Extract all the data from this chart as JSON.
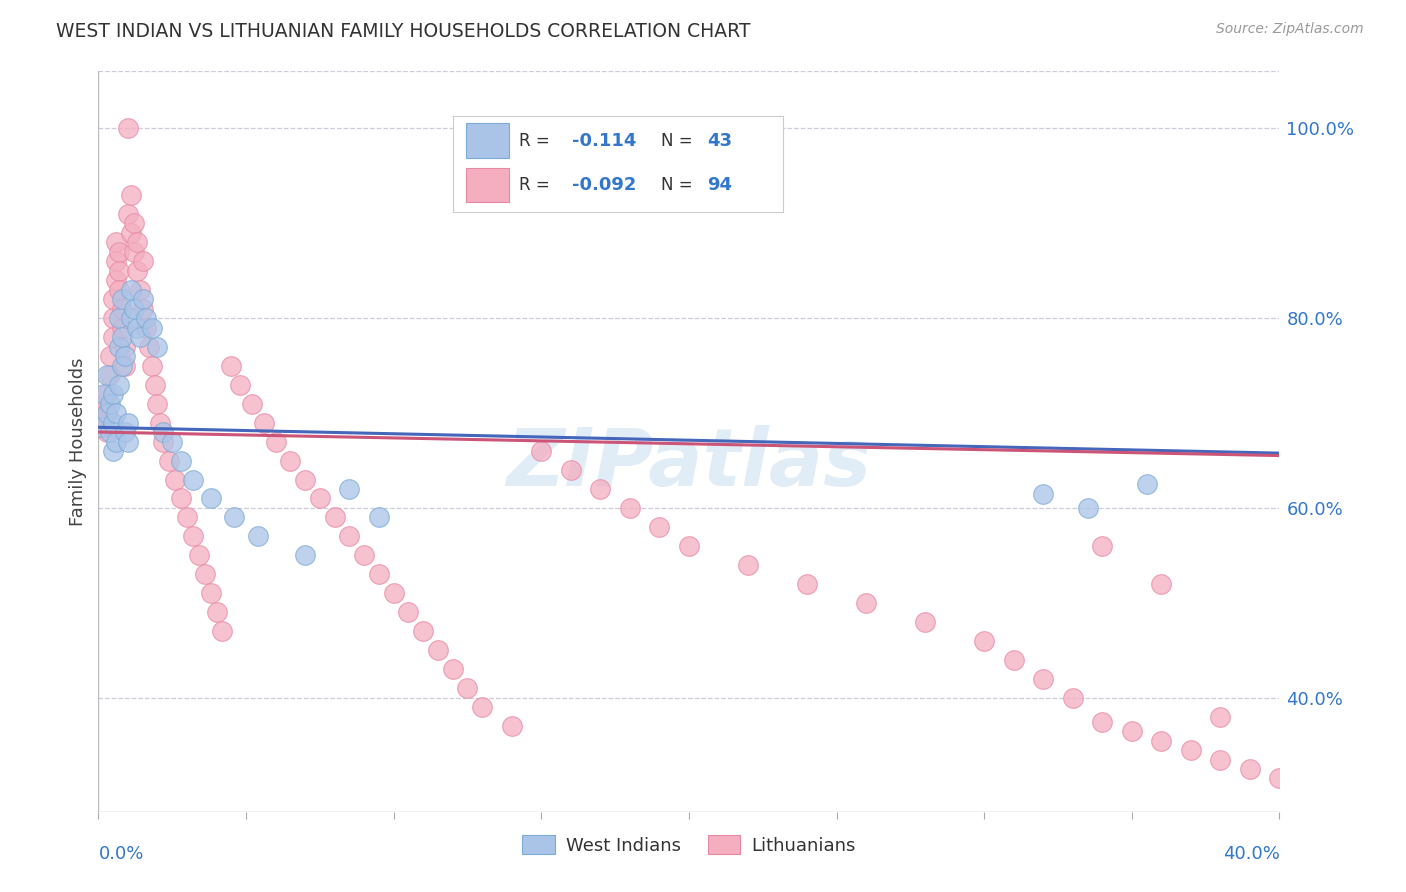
{
  "title": "WEST INDIAN VS LITHUANIAN FAMILY HOUSEHOLDS CORRELATION CHART",
  "source": "Source: ZipAtlas.com",
  "ylabel": "Family Households",
  "west_indians_color": "#aac4e8",
  "west_indians_edge": "#7baad4",
  "lithuanians_color": "#f4aec0",
  "lithuanians_edge": "#e888a4",
  "regression_blue": "#4466bb",
  "regression_pink": "#cc5577",
  "watermark_color": "#cce0f0",
  "legend_r1": "R =  -0.114",
  "legend_n1": "N = 43",
  "legend_r2": "R = -0.092",
  "legend_n2": "N = 94",
  "right_yticks": [
    1.0,
    0.8,
    0.6,
    0.4
  ],
  "right_ytick_labels": [
    "100.0%",
    "80.0%",
    "60.0%",
    "40.0%"
  ],
  "xmin": 0.0,
  "xmax": 0.4,
  "ymin": 0.28,
  "ymax": 1.06,
  "reg_intercept_wi": 0.685,
  "reg_slope_wi": -0.068,
  "reg_intercept_lt": 0.68,
  "reg_slope_lt": -0.062,
  "wi_x": [
    0.001,
    0.002,
    0.003,
    0.003,
    0.004,
    0.004,
    0.005,
    0.005,
    0.005,
    0.006,
    0.006,
    0.007,
    0.007,
    0.007,
    0.008,
    0.008,
    0.008,
    0.009,
    0.009,
    0.01,
    0.01,
    0.011,
    0.011,
    0.012,
    0.013,
    0.014,
    0.015,
    0.016,
    0.018,
    0.02,
    0.022,
    0.025,
    0.028,
    0.032,
    0.038,
    0.046,
    0.054,
    0.07,
    0.085,
    0.095,
    0.32,
    0.335,
    0.355
  ],
  "wi_y": [
    0.685,
    0.72,
    0.7,
    0.74,
    0.68,
    0.71,
    0.66,
    0.69,
    0.72,
    0.67,
    0.7,
    0.73,
    0.77,
    0.8,
    0.82,
    0.78,
    0.75,
    0.76,
    0.68,
    0.67,
    0.69,
    0.83,
    0.8,
    0.81,
    0.79,
    0.78,
    0.82,
    0.8,
    0.79,
    0.77,
    0.68,
    0.67,
    0.65,
    0.63,
    0.61,
    0.59,
    0.57,
    0.55,
    0.62,
    0.59,
    0.615,
    0.6,
    0.625
  ],
  "lt_x": [
    0.001,
    0.001,
    0.002,
    0.002,
    0.003,
    0.003,
    0.003,
    0.004,
    0.004,
    0.005,
    0.005,
    0.005,
    0.006,
    0.006,
    0.006,
    0.007,
    0.007,
    0.007,
    0.008,
    0.008,
    0.009,
    0.009,
    0.01,
    0.01,
    0.011,
    0.011,
    0.012,
    0.012,
    0.013,
    0.013,
    0.014,
    0.015,
    0.015,
    0.016,
    0.017,
    0.018,
    0.019,
    0.02,
    0.021,
    0.022,
    0.024,
    0.026,
    0.028,
    0.03,
    0.032,
    0.034,
    0.036,
    0.038,
    0.04,
    0.042,
    0.045,
    0.048,
    0.052,
    0.056,
    0.06,
    0.065,
    0.07,
    0.075,
    0.08,
    0.085,
    0.09,
    0.095,
    0.1,
    0.105,
    0.11,
    0.115,
    0.12,
    0.125,
    0.13,
    0.14,
    0.15,
    0.16,
    0.17,
    0.18,
    0.19,
    0.2,
    0.22,
    0.24,
    0.26,
    0.28,
    0.3,
    0.31,
    0.32,
    0.33,
    0.34,
    0.35,
    0.36,
    0.37,
    0.38,
    0.39,
    0.4,
    0.38,
    0.36,
    0.34
  ],
  "lt_y": [
    0.685,
    0.7,
    0.69,
    0.71,
    0.68,
    0.7,
    0.72,
    0.74,
    0.76,
    0.78,
    0.8,
    0.82,
    0.84,
    0.86,
    0.88,
    0.87,
    0.85,
    0.83,
    0.81,
    0.79,
    0.77,
    0.75,
    1.0,
    0.91,
    0.89,
    0.93,
    0.87,
    0.9,
    0.85,
    0.88,
    0.83,
    0.86,
    0.81,
    0.79,
    0.77,
    0.75,
    0.73,
    0.71,
    0.69,
    0.67,
    0.65,
    0.63,
    0.61,
    0.59,
    0.57,
    0.55,
    0.53,
    0.51,
    0.49,
    0.47,
    0.75,
    0.73,
    0.71,
    0.69,
    0.67,
    0.65,
    0.63,
    0.61,
    0.59,
    0.57,
    0.55,
    0.53,
    0.51,
    0.49,
    0.47,
    0.45,
    0.43,
    0.41,
    0.39,
    0.37,
    0.66,
    0.64,
    0.62,
    0.6,
    0.58,
    0.56,
    0.54,
    0.52,
    0.5,
    0.48,
    0.46,
    0.44,
    0.42,
    0.4,
    0.375,
    0.365,
    0.355,
    0.345,
    0.335,
    0.325,
    0.315,
    0.38,
    0.52,
    0.56
  ]
}
